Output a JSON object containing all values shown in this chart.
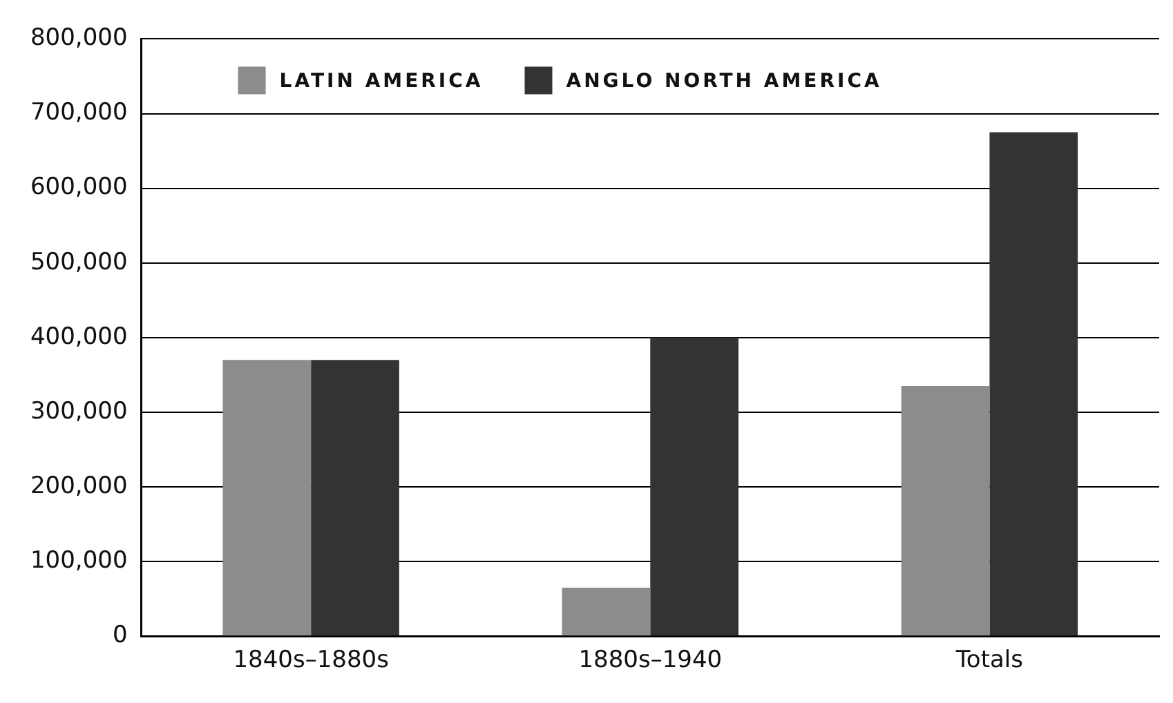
{
  "chart_data": {
    "type": "bar",
    "categories": [
      "1840s–1880s",
      "1880s–1940",
      "Totals"
    ],
    "series": [
      {
        "name": "LATIN AMERICA",
        "color": "#8c8c8c",
        "values": [
          370000,
          65000,
          335000
        ]
      },
      {
        "name": "ANGLO NORTH AMERICA",
        "color": "#333333",
        "values": [
          370000,
          400000,
          675000
        ]
      }
    ],
    "ylim": [
      0,
      800000
    ],
    "yticks": [
      0,
      {
        "value": 100000,
        "label": "100,000"
      },
      {
        "value": 200000,
        "label": "200,000"
      },
      {
        "value": 300000,
        "label": "300,000"
      },
      {
        "value": 400000,
        "label": "400,000"
      },
      {
        "value": 500000,
        "label": "500,000"
      },
      {
        "value": 600000,
        "label": "600,000"
      },
      {
        "value": 700000,
        "label": "700,000"
      },
      {
        "value": 800000,
        "label": "800,000"
      }
    ],
    "grid": "y",
    "legend": "top left"
  }
}
